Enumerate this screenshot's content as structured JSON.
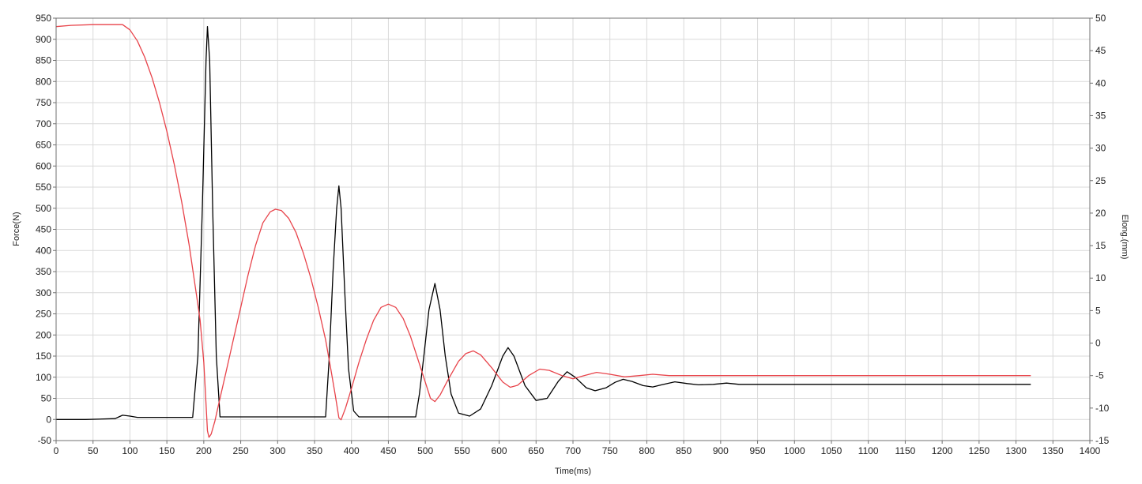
{
  "chart_data": {
    "type": "line",
    "xlabel": "Time(ms)",
    "ylabel": "Force(N)",
    "y2label": "Elong.(mm)",
    "xlim": [
      0,
      1400
    ],
    "ylim": [
      -50,
      950
    ],
    "y2lim": [
      -15,
      50
    ],
    "x_ticks": [
      0,
      50,
      100,
      150,
      200,
      250,
      300,
      350,
      400,
      450,
      500,
      550,
      600,
      650,
      700,
      750,
      800,
      850,
      900,
      950,
      1000,
      1050,
      1100,
      1150,
      1200,
      1250,
      1300,
      1350,
      1400
    ],
    "y_ticks": [
      -50,
      0,
      50,
      100,
      150,
      200,
      250,
      300,
      350,
      400,
      450,
      500,
      550,
      600,
      650,
      700,
      750,
      800,
      850,
      900,
      950
    ],
    "y2_ticks": [
      -15,
      -10,
      -5,
      0,
      5,
      10,
      15,
      20,
      25,
      30,
      35,
      40,
      45,
      50
    ],
    "grid": true,
    "series": [
      {
        "color": "#000000",
        "axis": "left",
        "points": [
          [
            0,
            0
          ],
          [
            40,
            0
          ],
          [
            80,
            2
          ],
          [
            85,
            6
          ],
          [
            90,
            10
          ],
          [
            100,
            8
          ],
          [
            110,
            5
          ],
          [
            150,
            5
          ],
          [
            185,
            5
          ],
          [
            192,
            150
          ],
          [
            198,
            500
          ],
          [
            203,
            850
          ],
          [
            205,
            930
          ],
          [
            208,
            850
          ],
          [
            212,
            500
          ],
          [
            217,
            150
          ],
          [
            222,
            6
          ],
          [
            300,
            6
          ],
          [
            360,
            6
          ],
          [
            365,
            6
          ],
          [
            370,
            150
          ],
          [
            375,
            350
          ],
          [
            380,
            500
          ],
          [
            383,
            553
          ],
          [
            386,
            500
          ],
          [
            391,
            300
          ],
          [
            396,
            120
          ],
          [
            403,
            20
          ],
          [
            410,
            6
          ],
          [
            460,
            6
          ],
          [
            487,
            6
          ],
          [
            492,
            60
          ],
          [
            498,
            150
          ],
          [
            505,
            260
          ],
          [
            513,
            322
          ],
          [
            520,
            260
          ],
          [
            527,
            150
          ],
          [
            535,
            60
          ],
          [
            545,
            15
          ],
          [
            560,
            8
          ],
          [
            575,
            25
          ],
          [
            590,
            80
          ],
          [
            605,
            150
          ],
          [
            612,
            170
          ],
          [
            620,
            150
          ],
          [
            635,
            80
          ],
          [
            650,
            45
          ],
          [
            665,
            50
          ],
          [
            680,
            90
          ],
          [
            692,
            113
          ],
          [
            703,
            100
          ],
          [
            718,
            75
          ],
          [
            730,
            68
          ],
          [
            745,
            75
          ],
          [
            757,
            88
          ],
          [
            768,
            95
          ],
          [
            780,
            90
          ],
          [
            795,
            80
          ],
          [
            808,
            77
          ],
          [
            820,
            82
          ],
          [
            838,
            89
          ],
          [
            855,
            85
          ],
          [
            870,
            82
          ],
          [
            890,
            83
          ],
          [
            908,
            86
          ],
          [
            925,
            83
          ],
          [
            950,
            83
          ],
          [
            1000,
            83
          ],
          [
            1050,
            83
          ],
          [
            1100,
            83
          ],
          [
            1150,
            83
          ],
          [
            1200,
            83
          ],
          [
            1250,
            83
          ],
          [
            1300,
            83
          ],
          [
            1320,
            83
          ]
        ]
      },
      {
        "color": "#e8434a",
        "axis": "right",
        "points": [
          [
            0,
            48.7
          ],
          [
            20,
            48.9
          ],
          [
            50,
            49.0
          ],
          [
            90,
            49.0
          ],
          [
            100,
            48.2
          ],
          [
            110,
            46.5
          ],
          [
            120,
            44.0
          ],
          [
            130,
            40.8
          ],
          [
            140,
            37.0
          ],
          [
            150,
            32.6
          ],
          [
            160,
            27.5
          ],
          [
            170,
            21.8
          ],
          [
            180,
            15.2
          ],
          [
            190,
            7.5
          ],
          [
            195,
            3.5
          ],
          [
            200,
            -3
          ],
          [
            205,
            -13.5
          ],
          [
            207,
            -14.5
          ],
          [
            210,
            -14.0
          ],
          [
            215,
            -12.0
          ],
          [
            220,
            -9.5
          ],
          [
            230,
            -4.5
          ],
          [
            240,
            0.5
          ],
          [
            250,
            5.5
          ],
          [
            260,
            10.5
          ],
          [
            270,
            15.0
          ],
          [
            280,
            18.5
          ],
          [
            290,
            20.2
          ],
          [
            297,
            20.6
          ],
          [
            305,
            20.4
          ],
          [
            315,
            19.2
          ],
          [
            325,
            17.0
          ],
          [
            335,
            13.8
          ],
          [
            345,
            10.0
          ],
          [
            355,
            5.5
          ],
          [
            365,
            0.5
          ],
          [
            372,
            -4.0
          ],
          [
            378,
            -8.0
          ],
          [
            383,
            -11.5
          ],
          [
            386,
            -11.8
          ],
          [
            392,
            -10.0
          ],
          [
            400,
            -7.0
          ],
          [
            410,
            -3.0
          ],
          [
            420,
            0.5
          ],
          [
            430,
            3.5
          ],
          [
            440,
            5.5
          ],
          [
            450,
            6.0
          ],
          [
            460,
            5.5
          ],
          [
            470,
            3.8
          ],
          [
            480,
            1.0
          ],
          [
            490,
            -2.5
          ],
          [
            500,
            -6.0
          ],
          [
            507,
            -8.5
          ],
          [
            513,
            -9.0
          ],
          [
            520,
            -8.0
          ],
          [
            530,
            -5.8
          ],
          [
            545,
            -2.8
          ],
          [
            555,
            -1.6
          ],
          [
            565,
            -1.2
          ],
          [
            575,
            -1.8
          ],
          [
            590,
            -3.8
          ],
          [
            605,
            -6.0
          ],
          [
            615,
            -6.8
          ],
          [
            625,
            -6.5
          ],
          [
            640,
            -5.0
          ],
          [
            655,
            -4.0
          ],
          [
            668,
            -4.2
          ],
          [
            685,
            -5.0
          ],
          [
            700,
            -5.5
          ],
          [
            715,
            -5.0
          ],
          [
            732,
            -4.5
          ],
          [
            750,
            -4.8
          ],
          [
            770,
            -5.2
          ],
          [
            790,
            -5.0
          ],
          [
            808,
            -4.8
          ],
          [
            830,
            -5.0
          ],
          [
            860,
            -5.0
          ],
          [
            900,
            -5.0
          ],
          [
            1000,
            -5.0
          ],
          [
            1100,
            -5.0
          ],
          [
            1200,
            -5.0
          ],
          [
            1320,
            -5.0
          ]
        ]
      }
    ]
  }
}
